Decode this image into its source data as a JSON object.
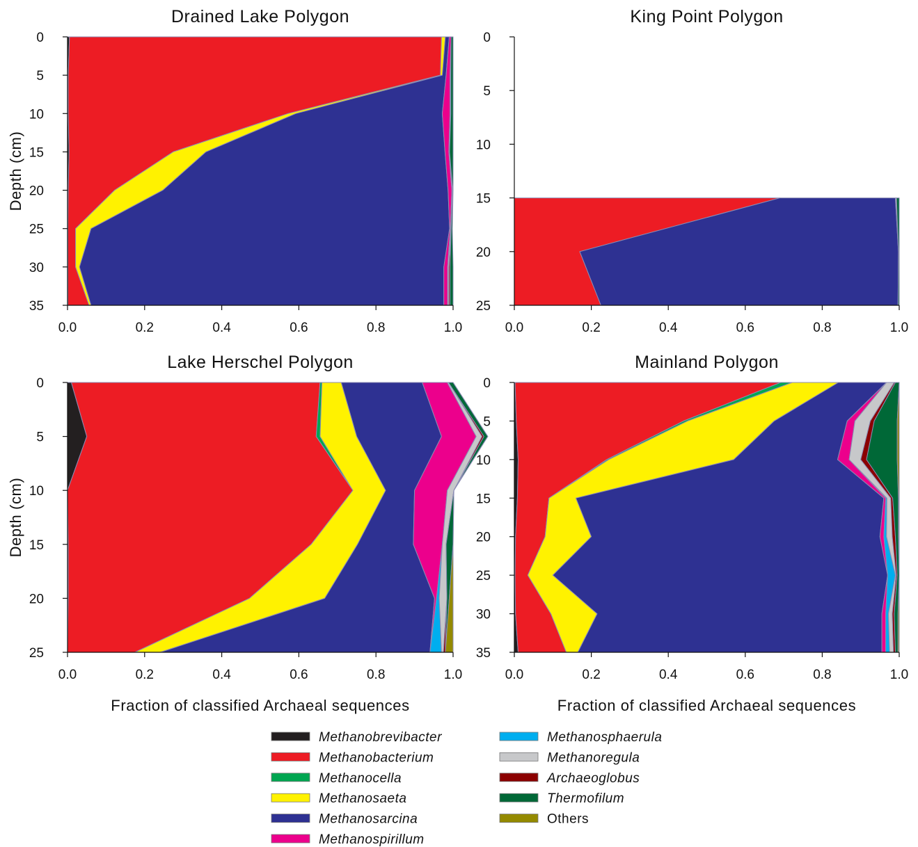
{
  "chart_data": [
    {
      "type": "area",
      "title": "Drained Lake Polygon",
      "ylabel": "Depth (cm)",
      "xlabel": "",
      "xlim": [
        0,
        1
      ],
      "ylim": [
        0,
        35
      ],
      "y_inverted": true,
      "xticks": [
        "0.0",
        "0.2",
        "0.4",
        "0.6",
        "0.8",
        "1.0"
      ],
      "yticks": [
        "0",
        "5",
        "10",
        "15",
        "20",
        "25",
        "30",
        "35"
      ],
      "depths": [
        0,
        5,
        10,
        15,
        20,
        25,
        30,
        35
      ],
      "series": [
        {
          "name": "Methanobrevibacter",
          "values": [
            0.005,
            0.002,
            0.002,
            0.004,
            0.002,
            0.001,
            0.001,
            0.001
          ]
        },
        {
          "name": "Methanobacterium",
          "values": [
            0.965,
            0.965,
            0.57,
            0.27,
            0.12,
            0.02,
            0.02,
            0.055
          ]
        },
        {
          "name": "Methanocella",
          "values": [
            0.0,
            0.0,
            0.0,
            0.0,
            0.0,
            0.0,
            0.0,
            0.0
          ]
        },
        {
          "name": "Methanosaeta",
          "values": [
            0.01,
            0.005,
            0.02,
            0.085,
            0.125,
            0.04,
            0.01,
            0.005
          ]
        },
        {
          "name": "Methanosarcina",
          "values": [
            0.01,
            0.01,
            0.38,
            0.62,
            0.74,
            0.93,
            0.945,
            0.915
          ]
        },
        {
          "name": "Methanospirillum",
          "values": [
            0.005,
            0.01,
            0.02,
            0.01,
            0.01,
            0.002,
            0.01,
            0.01
          ]
        },
        {
          "name": "Methanosphaerula",
          "values": [
            0.0,
            0.0,
            0.0,
            0.0,
            0.0,
            0.0,
            0.0,
            0.0
          ]
        },
        {
          "name": "Methanoregula",
          "values": [
            0.0,
            0.002,
            0.002,
            0.002,
            0.002,
            0.002,
            0.003,
            0.003
          ]
        },
        {
          "name": "Archaeoglobus",
          "values": [
            0.0,
            0.0,
            0.0,
            0.0,
            0.0,
            0.0,
            0.003,
            0.003
          ]
        },
        {
          "name": "Thermofilum",
          "values": [
            0.005,
            0.006,
            0.006,
            0.009,
            0.001,
            0.003,
            0.008,
            0.008
          ]
        },
        {
          "name": "Others",
          "values": [
            0.0,
            0.0,
            0.0,
            0.0,
            0.0,
            0.0,
            0.0,
            0.0
          ]
        }
      ]
    },
    {
      "type": "area",
      "title": "King Point Polygon",
      "ylabel": "",
      "xlabel": "",
      "xlim": [
        0,
        1
      ],
      "ylim": [
        0,
        25
      ],
      "y_inverted": true,
      "xticks": [
        "0.0",
        "0.2",
        "0.4",
        "0.6",
        "0.8",
        "1.0"
      ],
      "yticks": [
        "0",
        "5",
        "10",
        "15",
        "20",
        "25"
      ],
      "depths": [
        15,
        20,
        25
      ],
      "series": [
        {
          "name": "Methanobrevibacter",
          "values": [
            0.0,
            0.0,
            0.0
          ]
        },
        {
          "name": "Methanobacterium",
          "values": [
            0.69,
            0.17,
            0.225
          ]
        },
        {
          "name": "Methanocella",
          "values": [
            0.0,
            0.0,
            0.0
          ]
        },
        {
          "name": "Methanosaeta",
          "values": [
            0.0,
            0.0,
            0.0
          ]
        },
        {
          "name": "Methanosarcina",
          "values": [
            0.3,
            0.828,
            0.772
          ]
        },
        {
          "name": "Methanospirillum",
          "values": [
            0.0,
            0.0,
            0.0
          ]
        },
        {
          "name": "Methanosphaerula",
          "values": [
            0.0,
            0.0,
            0.0
          ]
        },
        {
          "name": "Methanoregula",
          "values": [
            0.003,
            0.0,
            0.0
          ]
        },
        {
          "name": "Archaeoglobus",
          "values": [
            0.0,
            0.0,
            0.0
          ]
        },
        {
          "name": "Thermofilum",
          "values": [
            0.007,
            0.002,
            0.003
          ]
        },
        {
          "name": "Others",
          "values": [
            0.0,
            0.0,
            0.0
          ]
        }
      ]
    },
    {
      "type": "area",
      "title": "Lake Herschel Polygon",
      "ylabel": "Depth (cm)",
      "xlabel": "Fraction of classified Archaeal sequences",
      "xlim": [
        0,
        1
      ],
      "ylim": [
        0,
        25
      ],
      "y_inverted": true,
      "xticks": [
        "0.0",
        "0.2",
        "0.4",
        "0.6",
        "0.8",
        "1.0"
      ],
      "yticks": [
        "0",
        "5",
        "10",
        "15",
        "20",
        "25"
      ],
      "depths": [
        0,
        5,
        10,
        15,
        20,
        25
      ],
      "series": [
        {
          "name": "Methanobrevibacter",
          "values": [
            0.01,
            0.05,
            0.0,
            0.002,
            0.002,
            0.0
          ]
        },
        {
          "name": "Methanobacterium",
          "values": [
            0.645,
            0.595,
            0.74,
            0.63,
            0.47,
            0.175
          ]
        },
        {
          "name": "Methanocella",
          "values": [
            0.005,
            0.01,
            0.0,
            0.0,
            0.0,
            0.0
          ]
        },
        {
          "name": "Methanosaeta",
          "values": [
            0.05,
            0.095,
            0.085,
            0.12,
            0.195,
            0.065
          ]
        },
        {
          "name": "Methanosarcina",
          "values": [
            0.21,
            0.22,
            0.075,
            0.145,
            0.285,
            0.7
          ]
        },
        {
          "name": "Methanospirillum",
          "values": [
            0.065,
            0.09,
            0.085,
            0.075,
            0.005,
            0.0
          ]
        },
        {
          "name": "Methanosphaerula",
          "values": [
            0.0,
            0.0,
            0.0,
            0.0,
            0.007,
            0.03
          ]
        },
        {
          "name": "Methanoregula",
          "values": [
            0.003,
            0.015,
            0.017,
            0.01,
            0.02,
            0.005
          ]
        },
        {
          "name": "Archaeoglobus",
          "values": [
            0.0,
            0.005,
            0.0,
            0.0,
            0.0,
            0.005
          ]
        },
        {
          "name": "Thermofilum",
          "values": [
            0.012,
            0.01,
            0.0,
            0.018,
            0.006,
            0.0
          ]
        },
        {
          "name": "Others",
          "values": [
            0.0,
            0.0,
            0.0,
            0.0,
            0.01,
            0.02
          ]
        }
      ]
    },
    {
      "type": "area",
      "title": "Mainland Polygon",
      "ylabel": "",
      "xlabel": "Fraction of classified Archaeal sequences",
      "xlim": [
        0,
        1
      ],
      "ylim": [
        0,
        35
      ],
      "y_inverted": true,
      "xticks": [
        "0.0",
        "0.2",
        "0.4",
        "0.6",
        "0.8",
        "1.0"
      ],
      "yticks": [
        "0",
        "5",
        "10",
        "15",
        "20",
        "25",
        "30",
        "35"
      ],
      "depths": [
        0,
        5,
        10,
        15,
        20,
        25,
        30,
        35
      ],
      "series": [
        {
          "name": "Methanobrevibacter",
          "values": [
            0.002,
            0.005,
            0.01,
            0.008,
            0.003,
            0.002,
            0.003,
            0.01
          ]
        },
        {
          "name": "Methanobacterium",
          "values": [
            0.69,
            0.435,
            0.23,
            0.082,
            0.077,
            0.033,
            0.092,
            0.125
          ]
        },
        {
          "name": "Methanocella",
          "values": [
            0.03,
            0.01,
            0.005,
            0.0,
            0.0,
            0.0,
            0.0,
            0.0
          ]
        },
        {
          "name": "Methanosaeta",
          "values": [
            0.12,
            0.225,
            0.325,
            0.07,
            0.12,
            0.065,
            0.12,
            0.03
          ]
        },
        {
          "name": "Methanosarcina",
          "values": [
            0.125,
            0.19,
            0.27,
            0.8,
            0.75,
            0.87,
            0.74,
            0.79
          ]
        },
        {
          "name": "Methanospirillum",
          "values": [
            0.0,
            0.02,
            0.03,
            0.005,
            0.01,
            0.0,
            0.01,
            0.01
          ]
        },
        {
          "name": "Methanosphaerula",
          "values": [
            0.0,
            0.0,
            0.0,
            0.003,
            0.007,
            0.02,
            0.007,
            0.01
          ]
        },
        {
          "name": "Methanoregula",
          "values": [
            0.02,
            0.04,
            0.03,
            0.01,
            0.015,
            0.002,
            0.01,
            0.01
          ]
        },
        {
          "name": "Archaeoglobus",
          "values": [
            0.003,
            0.01,
            0.015,
            0.005,
            0.008,
            0.003,
            0.005,
            0.005
          ]
        },
        {
          "name": "Thermofilum",
          "values": [
            0.01,
            0.06,
            0.08,
            0.015,
            0.008,
            0.005,
            0.01,
            0.007
          ]
        },
        {
          "name": "Others",
          "values": [
            0.0,
            0.005,
            0.005,
            0.002,
            0.002,
            0.0,
            0.003,
            0.003
          ]
        }
      ]
    }
  ],
  "legend": [
    {
      "name": "Methanobrevibacter",
      "color": "#231f20",
      "italic": true
    },
    {
      "name": "Methanobacterium",
      "color": "#ed1c24",
      "italic": true
    },
    {
      "name": "Methanocella",
      "color": "#00a651",
      "italic": true
    },
    {
      "name": "Methanosaeta",
      "color": "#fff200",
      "italic": true
    },
    {
      "name": "Methanosarcina",
      "color": "#2e3192",
      "italic": true
    },
    {
      "name": "Methanospirillum",
      "color": "#ec008c",
      "italic": true
    },
    {
      "name": "Methanosphaerula",
      "color": "#00aeef",
      "italic": true
    },
    {
      "name": "Methanoregula",
      "color": "#c7c8ca",
      "italic": true
    },
    {
      "name": "Archaeoglobus",
      "color": "#8b0000",
      "italic": true
    },
    {
      "name": "Thermofilum",
      "color": "#006837",
      "italic": true
    },
    {
      "name": "Others",
      "color": "#948a00",
      "italic": false
    }
  ],
  "legend_placement": "bottom-center",
  "boundary_color": "#8c8cb4"
}
